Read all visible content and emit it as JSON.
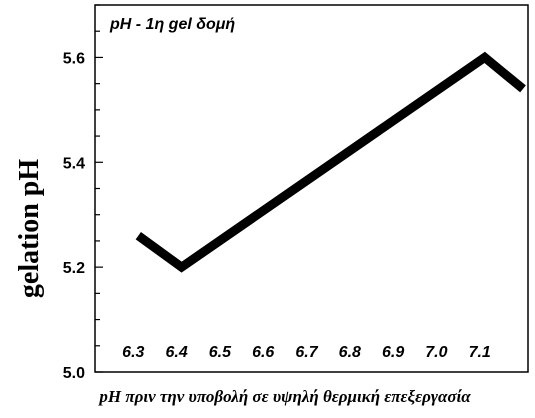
{
  "chart_data": {
    "type": "line",
    "title": "pH - 1η gel δομή",
    "xlabel": "pH πριν την υποβολή σε υψηλή θερμική επεξεργασία",
    "ylabel": "gelation pH",
    "x_tick_labels": [
      "6.3",
      "6.4",
      "6.5",
      "6.6",
      "6.7",
      "6.8",
      "6.9",
      "7.0",
      "7.1"
    ],
    "y_tick_labels": [
      "5.0",
      "5.2",
      "5.4",
      "5.6"
    ],
    "xlim": [
      6.2,
      7.2
    ],
    "ylim": [
      5.0,
      5.7
    ],
    "grid": false,
    "series": [
      {
        "x": [
          6.3,
          6.4,
          7.1,
          7.2
        ],
        "y": [
          5.26,
          5.2,
          5.6,
          5.54
        ]
      }
    ]
  }
}
